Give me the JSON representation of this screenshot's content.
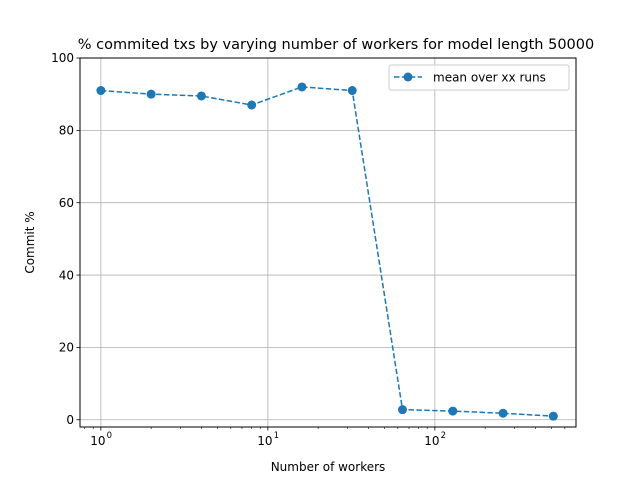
{
  "chart_data": {
    "type": "line",
    "title": "% commited txs by varying number of workers for model length 50000",
    "xlabel": "Number of workers",
    "ylabel": "Commit %",
    "xscale": "log",
    "xlim": [
      0.75,
      700
    ],
    "ylim": [
      -2,
      100
    ],
    "grid": true,
    "legend_position": "top-right",
    "x_ticks": [
      {
        "base": "10",
        "exp": "0",
        "value": 1
      },
      {
        "base": "10",
        "exp": "1",
        "value": 10
      },
      {
        "base": "10",
        "exp": "2",
        "value": 100
      }
    ],
    "y_ticks": [
      0,
      20,
      40,
      60,
      80,
      100
    ],
    "y_tick_labels": [
      "0",
      "20",
      "40",
      "60",
      "80",
      "100"
    ],
    "series": [
      {
        "name": "mean over xx runs",
        "color": "#1f77b4",
        "linestyle": "dashed",
        "marker": "circle",
        "x": [
          1,
          2,
          4,
          8,
          16,
          32,
          64,
          128,
          256,
          512
        ],
        "values": [
          91.0,
          90.0,
          89.5,
          87.0,
          92.0,
          91.0,
          2.8,
          2.4,
          1.8,
          1.0
        ]
      }
    ]
  }
}
